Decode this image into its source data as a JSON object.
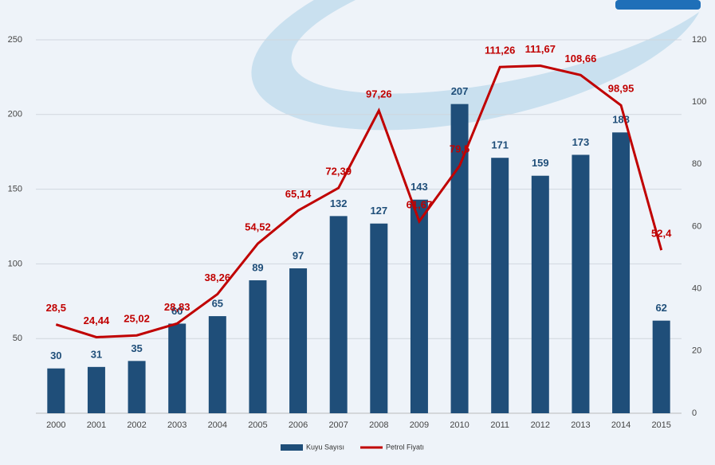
{
  "chart_data": {
    "type": "bar",
    "categories": [
      "2000",
      "2001",
      "2002",
      "2003",
      "2004",
      "2005",
      "2006",
      "2007",
      "2008",
      "2009",
      "2010",
      "2011",
      "2012",
      "2013",
      "2014",
      "2015"
    ],
    "series": [
      {
        "name": "Kuyu Sayısı",
        "type": "bar",
        "color": "#1f4e79",
        "values": [
          30,
          31,
          35,
          60,
          65,
          89,
          97,
          132,
          127,
          143,
          207,
          171,
          159,
          173,
          188,
          62
        ]
      },
      {
        "name": "Petrol Fiyatı",
        "type": "line",
        "axis": "y2",
        "color": "#c00000",
        "values": [
          28.5,
          24.44,
          25.02,
          28.83,
          38.26,
          54.52,
          65.14,
          72.39,
          97.26,
          61.67,
          79.5,
          111.26,
          111.67,
          108.66,
          98.95,
          52.4
        ],
        "value_labels": [
          "28,5",
          "24,44",
          "25,02",
          "28,83",
          "38,26",
          "54,52",
          "65,14",
          "72,39",
          "97,26",
          "61,67",
          "79,5",
          "111,26",
          "111,67",
          "108,66",
          "98,95",
          "52,4"
        ]
      }
    ],
    "ylim": [
      0,
      250
    ],
    "yticks": [
      50,
      100,
      150,
      200,
      250
    ],
    "y2lim": [
      0,
      120
    ],
    "y2ticks": [
      0,
      20,
      40,
      60,
      80,
      100,
      120
    ],
    "grid": true,
    "legend": "bottom"
  }
}
